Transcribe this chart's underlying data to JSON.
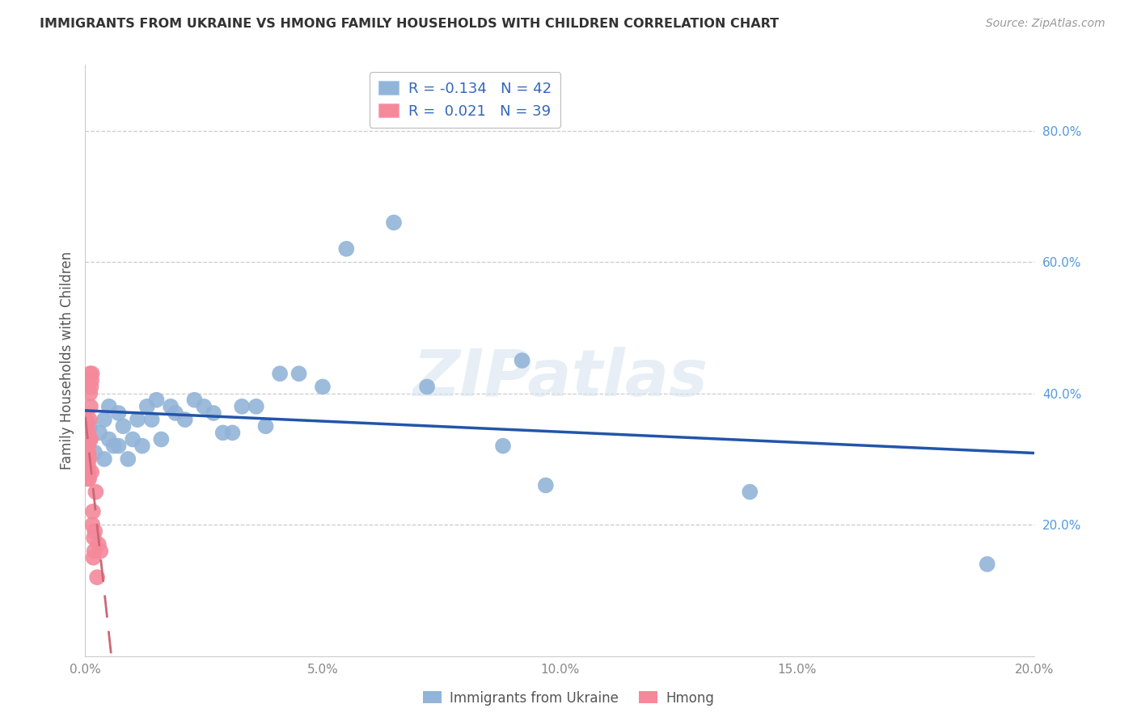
{
  "title": "IMMIGRANTS FROM UKRAINE VS HMONG FAMILY HOUSEHOLDS WITH CHILDREN CORRELATION CHART",
  "source": "Source: ZipAtlas.com",
  "xlabel_blue": "Immigrants from Ukraine",
  "xlabel_pink": "Hmong",
  "ylabel": "Family Households with Children",
  "xlim": [
    0.0,
    0.2
  ],
  "ylim": [
    0.0,
    0.9
  ],
  "right_yticks": [
    0.0,
    0.2,
    0.4,
    0.6,
    0.8
  ],
  "right_yticklabels": [
    "",
    "20.0%",
    "40.0%",
    "60.0%",
    "80.0%"
  ],
  "blue_R": -0.134,
  "blue_N": 42,
  "pink_R": 0.021,
  "pink_N": 39,
  "blue_color": "#92B4D8",
  "pink_color": "#F4899A",
  "blue_line_color": "#2255AA",
  "pink_line_color": "#CC6677",
  "watermark": "ZIPatlas",
  "blue_scatter_x": [
    0.001,
    0.001,
    0.002,
    0.003,
    0.004,
    0.004,
    0.005,
    0.005,
    0.006,
    0.007,
    0.007,
    0.008,
    0.009,
    0.01,
    0.011,
    0.012,
    0.013,
    0.014,
    0.015,
    0.016,
    0.018,
    0.019,
    0.021,
    0.023,
    0.025,
    0.027,
    0.029,
    0.031,
    0.033,
    0.036,
    0.038,
    0.041,
    0.045,
    0.05,
    0.055,
    0.065,
    0.072,
    0.088,
    0.092,
    0.097,
    0.14,
    0.19
  ],
  "blue_scatter_y": [
    0.33,
    0.35,
    0.31,
    0.34,
    0.36,
    0.3,
    0.38,
    0.33,
    0.32,
    0.37,
    0.32,
    0.35,
    0.3,
    0.33,
    0.36,
    0.32,
    0.38,
    0.36,
    0.39,
    0.33,
    0.38,
    0.37,
    0.36,
    0.39,
    0.38,
    0.37,
    0.34,
    0.34,
    0.38,
    0.38,
    0.35,
    0.43,
    0.43,
    0.41,
    0.62,
    0.66,
    0.41,
    0.32,
    0.45,
    0.26,
    0.25,
    0.14
  ],
  "pink_scatter_x": [
    0.0002,
    0.0002,
    0.0002,
    0.0003,
    0.0003,
    0.0003,
    0.0004,
    0.0004,
    0.0004,
    0.0005,
    0.0005,
    0.0005,
    0.0006,
    0.0006,
    0.0007,
    0.0007,
    0.0007,
    0.0008,
    0.0008,
    0.0009,
    0.0009,
    0.001,
    0.001,
    0.0011,
    0.0011,
    0.0012,
    0.0013,
    0.0013,
    0.0014,
    0.0015,
    0.0016,
    0.0017,
    0.0018,
    0.0019,
    0.002,
    0.0022,
    0.0025,
    0.0028,
    0.0032
  ],
  "pink_scatter_y": [
    0.3,
    0.33,
    0.36,
    0.29,
    0.32,
    0.35,
    0.28,
    0.31,
    0.34,
    0.27,
    0.3,
    0.33,
    0.29,
    0.32,
    0.28,
    0.31,
    0.34,
    0.27,
    0.3,
    0.33,
    0.36,
    0.43,
    0.4,
    0.38,
    0.33,
    0.41,
    0.42,
    0.28,
    0.43,
    0.2,
    0.22,
    0.15,
    0.18,
    0.16,
    0.19,
    0.25,
    0.12,
    0.17,
    0.16
  ]
}
